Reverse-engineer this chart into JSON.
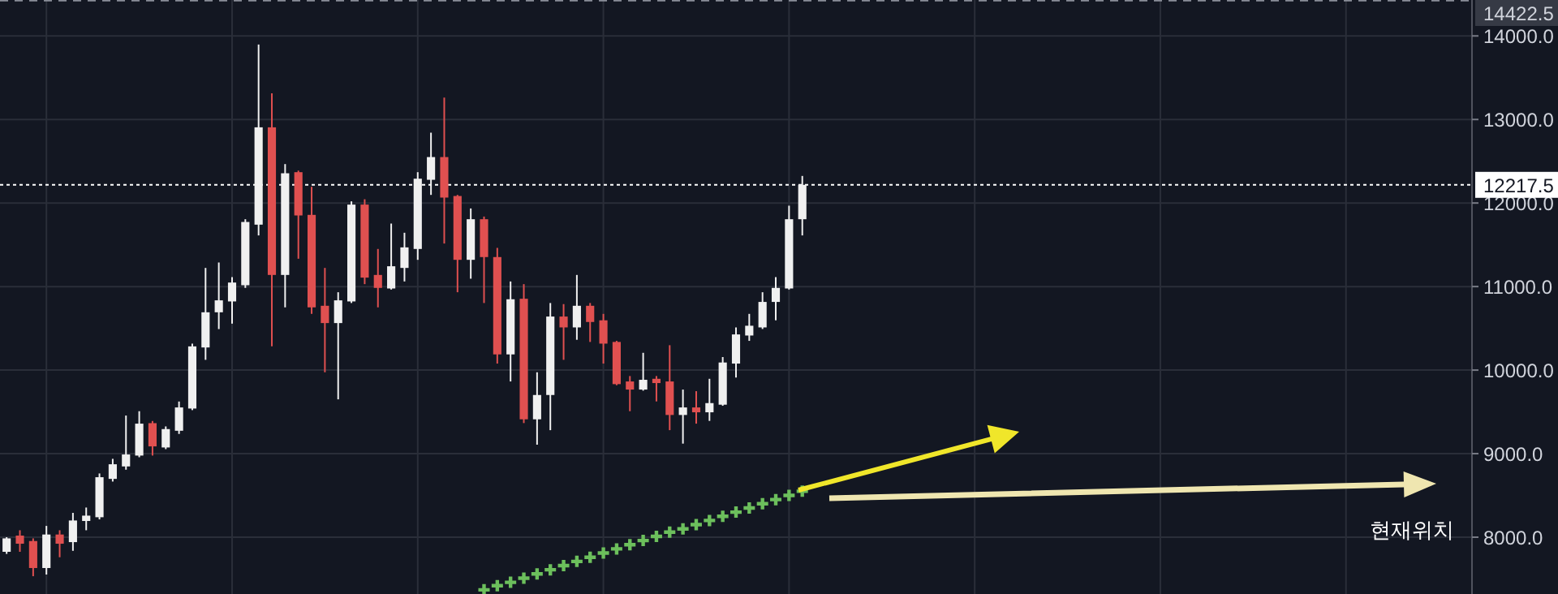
{
  "chart_data": {
    "type": "candlestick",
    "categories": [
      null,
      null,
      null,
      null,
      null,
      null,
      null,
      null,
      null,
      null,
      null,
      null,
      null,
      null,
      null,
      null,
      null,
      null,
      null,
      null,
      null,
      null,
      null,
      null,
      null,
      null,
      null,
      null,
      null,
      null,
      null,
      null,
      null,
      null,
      null,
      null,
      null,
      null,
      null,
      null,
      null,
      null,
      null,
      null,
      null,
      null,
      null,
      null,
      null,
      null,
      null,
      null,
      null,
      null,
      null,
      null,
      null,
      null,
      null,
      null,
      null,
      null,
      null,
      null,
      null,
      null,
      null,
      null,
      null,
      null,
      null,
      null,
      null,
      null,
      null,
      null,
      null,
      null,
      null,
      null,
      null,
      null,
      null,
      null,
      null,
      null,
      null,
      null,
      null,
      null,
      null,
      null,
      null,
      null,
      null,
      null,
      null,
      null,
      null,
      null,
      null,
      null,
      null,
      null,
      null,
      null,
      null,
      null,
      null,
      null,
      null
    ],
    "ohlc": [
      [
        7825,
        8000,
        7800,
        7986
      ],
      [
        8019,
        8083,
        7825,
        7922
      ],
      [
        7954,
        7986,
        7533,
        7631
      ],
      [
        7631,
        8135,
        7553,
        8032
      ],
      [
        8032,
        8083,
        7760,
        7922
      ],
      [
        7941,
        8291,
        7837,
        8200
      ],
      [
        8194,
        8355,
        8083,
        8258
      ],
      [
        8239,
        8763,
        8213,
        8718
      ],
      [
        8698,
        8938,
        8666,
        8873
      ],
      [
        8847,
        9456,
        8808,
        8990
      ],
      [
        8977,
        9508,
        8957,
        9359
      ],
      [
        9365,
        9391,
        8977,
        9087
      ],
      [
        9074,
        9326,
        9054,
        9294
      ],
      [
        9274,
        9624,
        9236,
        9553
      ],
      [
        9540,
        10317,
        9521,
        10284
      ],
      [
        10271,
        11223,
        10123,
        10692
      ],
      [
        10692,
        11288,
        10491,
        10835
      ],
      [
        10822,
        11113,
        10556,
        11048
      ],
      [
        11016,
        11806,
        10984,
        11773
      ],
      [
        11741,
        13897,
        11612,
        12906
      ],
      [
        12906,
        13314,
        10285,
        11139
      ],
      [
        11139,
        12466,
        10751,
        12356
      ],
      [
        12369,
        12388,
        11333,
        11851
      ],
      [
        11858,
        12194,
        10673,
        10751
      ],
      [
        10770,
        11223,
        9974,
        10563
      ],
      [
        10563,
        10932,
        9650,
        10835
      ],
      [
        10822,
        12020,
        10803,
        11981
      ],
      [
        11981,
        12045,
        11029,
        11107
      ],
      [
        11139,
        11450,
        10751,
        10984
      ],
      [
        10977,
        11754,
        10964,
        11243
      ],
      [
        11223,
        11644,
        11061,
        11469
      ],
      [
        11450,
        12369,
        11320,
        12291
      ],
      [
        12278,
        12842,
        12097,
        12550
      ],
      [
        12550,
        13262,
        11515,
        12065
      ],
      [
        12084,
        12097,
        10932,
        11320
      ],
      [
        11320,
        11935,
        11094,
        11806
      ],
      [
        11806,
        11838,
        10803,
        11353
      ],
      [
        11353,
        11463,
        10078,
        10188
      ],
      [
        10188,
        11061,
        9864,
        10848
      ],
      [
        10854,
        11029,
        9366,
        9411
      ],
      [
        9411,
        9974,
        9107,
        9702
      ],
      [
        9702,
        10803,
        9281,
        10641
      ],
      [
        10641,
        10790,
        10123,
        10511
      ],
      [
        10511,
        11139,
        10363,
        10770
      ],
      [
        10770,
        10803,
        10337,
        10576
      ],
      [
        10596,
        10673,
        10078,
        10317
      ],
      [
        10337,
        10350,
        9819,
        9832
      ],
      [
        9864,
        9929,
        9508,
        9767
      ],
      [
        9767,
        10207,
        9754,
        9884
      ],
      [
        9896,
        9929,
        9625,
        9845
      ],
      [
        9864,
        10298,
        9281,
        9463
      ],
      [
        9463,
        9767,
        9120,
        9553
      ],
      [
        9553,
        9748,
        9359,
        9495
      ],
      [
        9495,
        9896,
        9392,
        9605
      ],
      [
        9586,
        10156,
        9573,
        10091
      ],
      [
        10078,
        10511,
        9910,
        10427
      ],
      [
        10414,
        10673,
        10350,
        10531
      ],
      [
        10511,
        10932,
        10492,
        10816
      ],
      [
        10816,
        11113,
        10596,
        10984
      ],
      [
        10977,
        11968,
        10964,
        11806
      ],
      [
        11806,
        12324,
        11612,
        12217.5
      ],
      null,
      null,
      null,
      null,
      null,
      null,
      null,
      null,
      null,
      null,
      null,
      null,
      null,
      null,
      null,
      null,
      null,
      null,
      null,
      null,
      null,
      null,
      null,
      null,
      null,
      null,
      null,
      null,
      null,
      null,
      null,
      null,
      null,
      null,
      null,
      null,
      null,
      null,
      null,
      null,
      null,
      null,
      null,
      null,
      null,
      null,
      null,
      null,
      null,
      null
    ],
    "colors": [
      "#f0f0f0",
      "#e05050",
      "#e05050",
      "#f0f0f0",
      "#e05050",
      "#f0f0f0",
      "#f0f0f0",
      "#f0f0f0",
      "#f0f0f0",
      "#f0f0f0",
      "#f0f0f0",
      "#e05050",
      "#f0f0f0",
      "#f0f0f0",
      "#f0f0f0",
      "#f0f0f0",
      "#f0f0f0",
      "#f0f0f0",
      "#f0f0f0",
      "#f0f0f0",
      "#e05050",
      "#f0f0f0",
      "#e05050",
      "#e05050",
      "#e05050",
      "#f0f0f0",
      "#f0f0f0",
      "#e05050",
      "#e05050",
      "#f0f0f0",
      "#f0f0f0",
      "#f0f0f0",
      "#f0f0f0",
      "#e05050",
      "#e05050",
      "#f0f0f0",
      "#e05050",
      "#e05050",
      "#f0f0f0",
      "#e05050",
      "#f0f0f0",
      "#f0f0f0",
      "#e05050",
      "#f0f0f0",
      "#e05050",
      "#e05050",
      "#e05050",
      "#e05050",
      "#f0f0f0",
      "#e05050",
      "#e05050",
      "#f0f0f0",
      "#e05050",
      "#f0f0f0",
      "#f0f0f0",
      "#f0f0f0",
      "#f0f0f0",
      "#f0f0f0",
      "#f0f0f0",
      "#f0f0f0",
      "#f0f0f0",
      null,
      null,
      null,
      null,
      null,
      null,
      null,
      null,
      null,
      null,
      null,
      null,
      null,
      null,
      null,
      null,
      null,
      null,
      null,
      null,
      null,
      null,
      null,
      null,
      null,
      null,
      null,
      null,
      null,
      null,
      null,
      null,
      null,
      null,
      null,
      null,
      null,
      null,
      null,
      null,
      null,
      null,
      null,
      null,
      null,
      null,
      null,
      null,
      null,
      null
    ],
    "series": [
      {
        "type": "scatter",
        "marker": "cross",
        "color": "#6cbf5c",
        "values": [
          null,
          null,
          null,
          null,
          null,
          null,
          null,
          null,
          null,
          null,
          null,
          null,
          null,
          null,
          null,
          null,
          null,
          null,
          null,
          null,
          null,
          null,
          null,
          null,
          null,
          null,
          null,
          null,
          null,
          null,
          null,
          null,
          null,
          null,
          null,
          null,
          7370,
          7420,
          7460,
          7510,
          7560,
          7610,
          7660,
          7710,
          7760,
          7810,
          7860,
          7910,
          7960,
          8010,
          8060,
          8100,
          8150,
          8200,
          8250,
          8300,
          8350,
          8400,
          8450,
          8500,
          8550,
          null,
          null,
          null,
          null,
          null,
          null,
          null,
          null,
          null,
          null,
          null,
          null,
          null,
          null,
          null,
          null,
          null,
          null,
          null,
          null,
          null,
          null,
          null,
          null,
          null,
          null,
          null,
          null,
          null,
          null,
          null,
          null,
          null,
          null,
          null,
          null,
          null,
          null,
          null,
          null,
          null,
          null,
          null,
          null,
          null,
          null,
          null,
          null,
          null,
          null
        ]
      }
    ],
    "ylim": [
      7320,
      14430
    ],
    "yticks": [
      {
        "value": 8000,
        "label": "8000.0"
      },
      {
        "value": 9000,
        "label": "9000.0"
      },
      {
        "value": 10000,
        "label": "10000.0"
      },
      {
        "value": 11000,
        "label": "11000.0"
      },
      {
        "value": 12000,
        "label": "12000.0"
      },
      {
        "value": 13000,
        "label": "13000.0"
      },
      {
        "value": 14000,
        "label": "14000.0"
      }
    ],
    "grid": true,
    "tick_labels": "y",
    "ref_lines": [
      {
        "axis": "y",
        "value": 12217.5,
        "label": "12217.5",
        "color": "#ffffff",
        "line_style": "dotted"
      },
      {
        "axis": "y",
        "value": 14422.5,
        "label": "14422.5",
        "color": "#8a8e99",
        "line_style": "dashed"
      }
    ],
    "annotations": [
      "현재위치"
    ]
  }
}
